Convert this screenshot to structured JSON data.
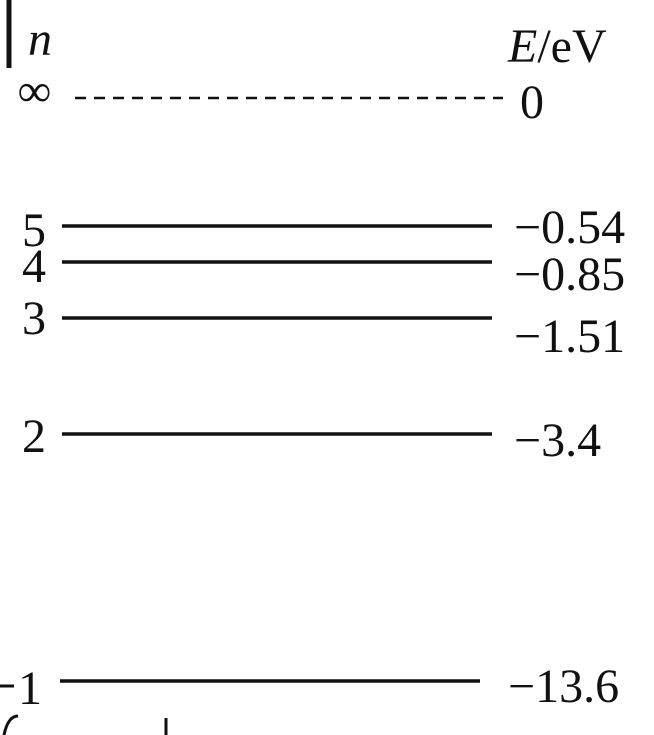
{
  "diagram": {
    "type": "energy-level-diagram",
    "axis_left_label": "n",
    "axis_right_label": {
      "symbol": "E",
      "unit": "/eV"
    },
    "levels": [
      {
        "n": "∞",
        "energy": "0",
        "energy_value": 0,
        "style": "dashed"
      },
      {
        "n": "5",
        "energy": "−0.54",
        "energy_value": -0.54,
        "style": "solid"
      },
      {
        "n": "4",
        "energy": "−0.85",
        "energy_value": -0.85,
        "style": "solid"
      },
      {
        "n": "3",
        "energy": "−1.51",
        "energy_value": -1.51,
        "style": "solid"
      },
      {
        "n": "2",
        "energy": "−3.4",
        "energy_value": -3.4,
        "style": "solid"
      },
      {
        "n": "1",
        "energy": "−13.6",
        "energy_value": -13.6,
        "style": "solid"
      }
    ],
    "colors": {
      "ink": "#111111",
      "background": "#ffffff"
    }
  }
}
